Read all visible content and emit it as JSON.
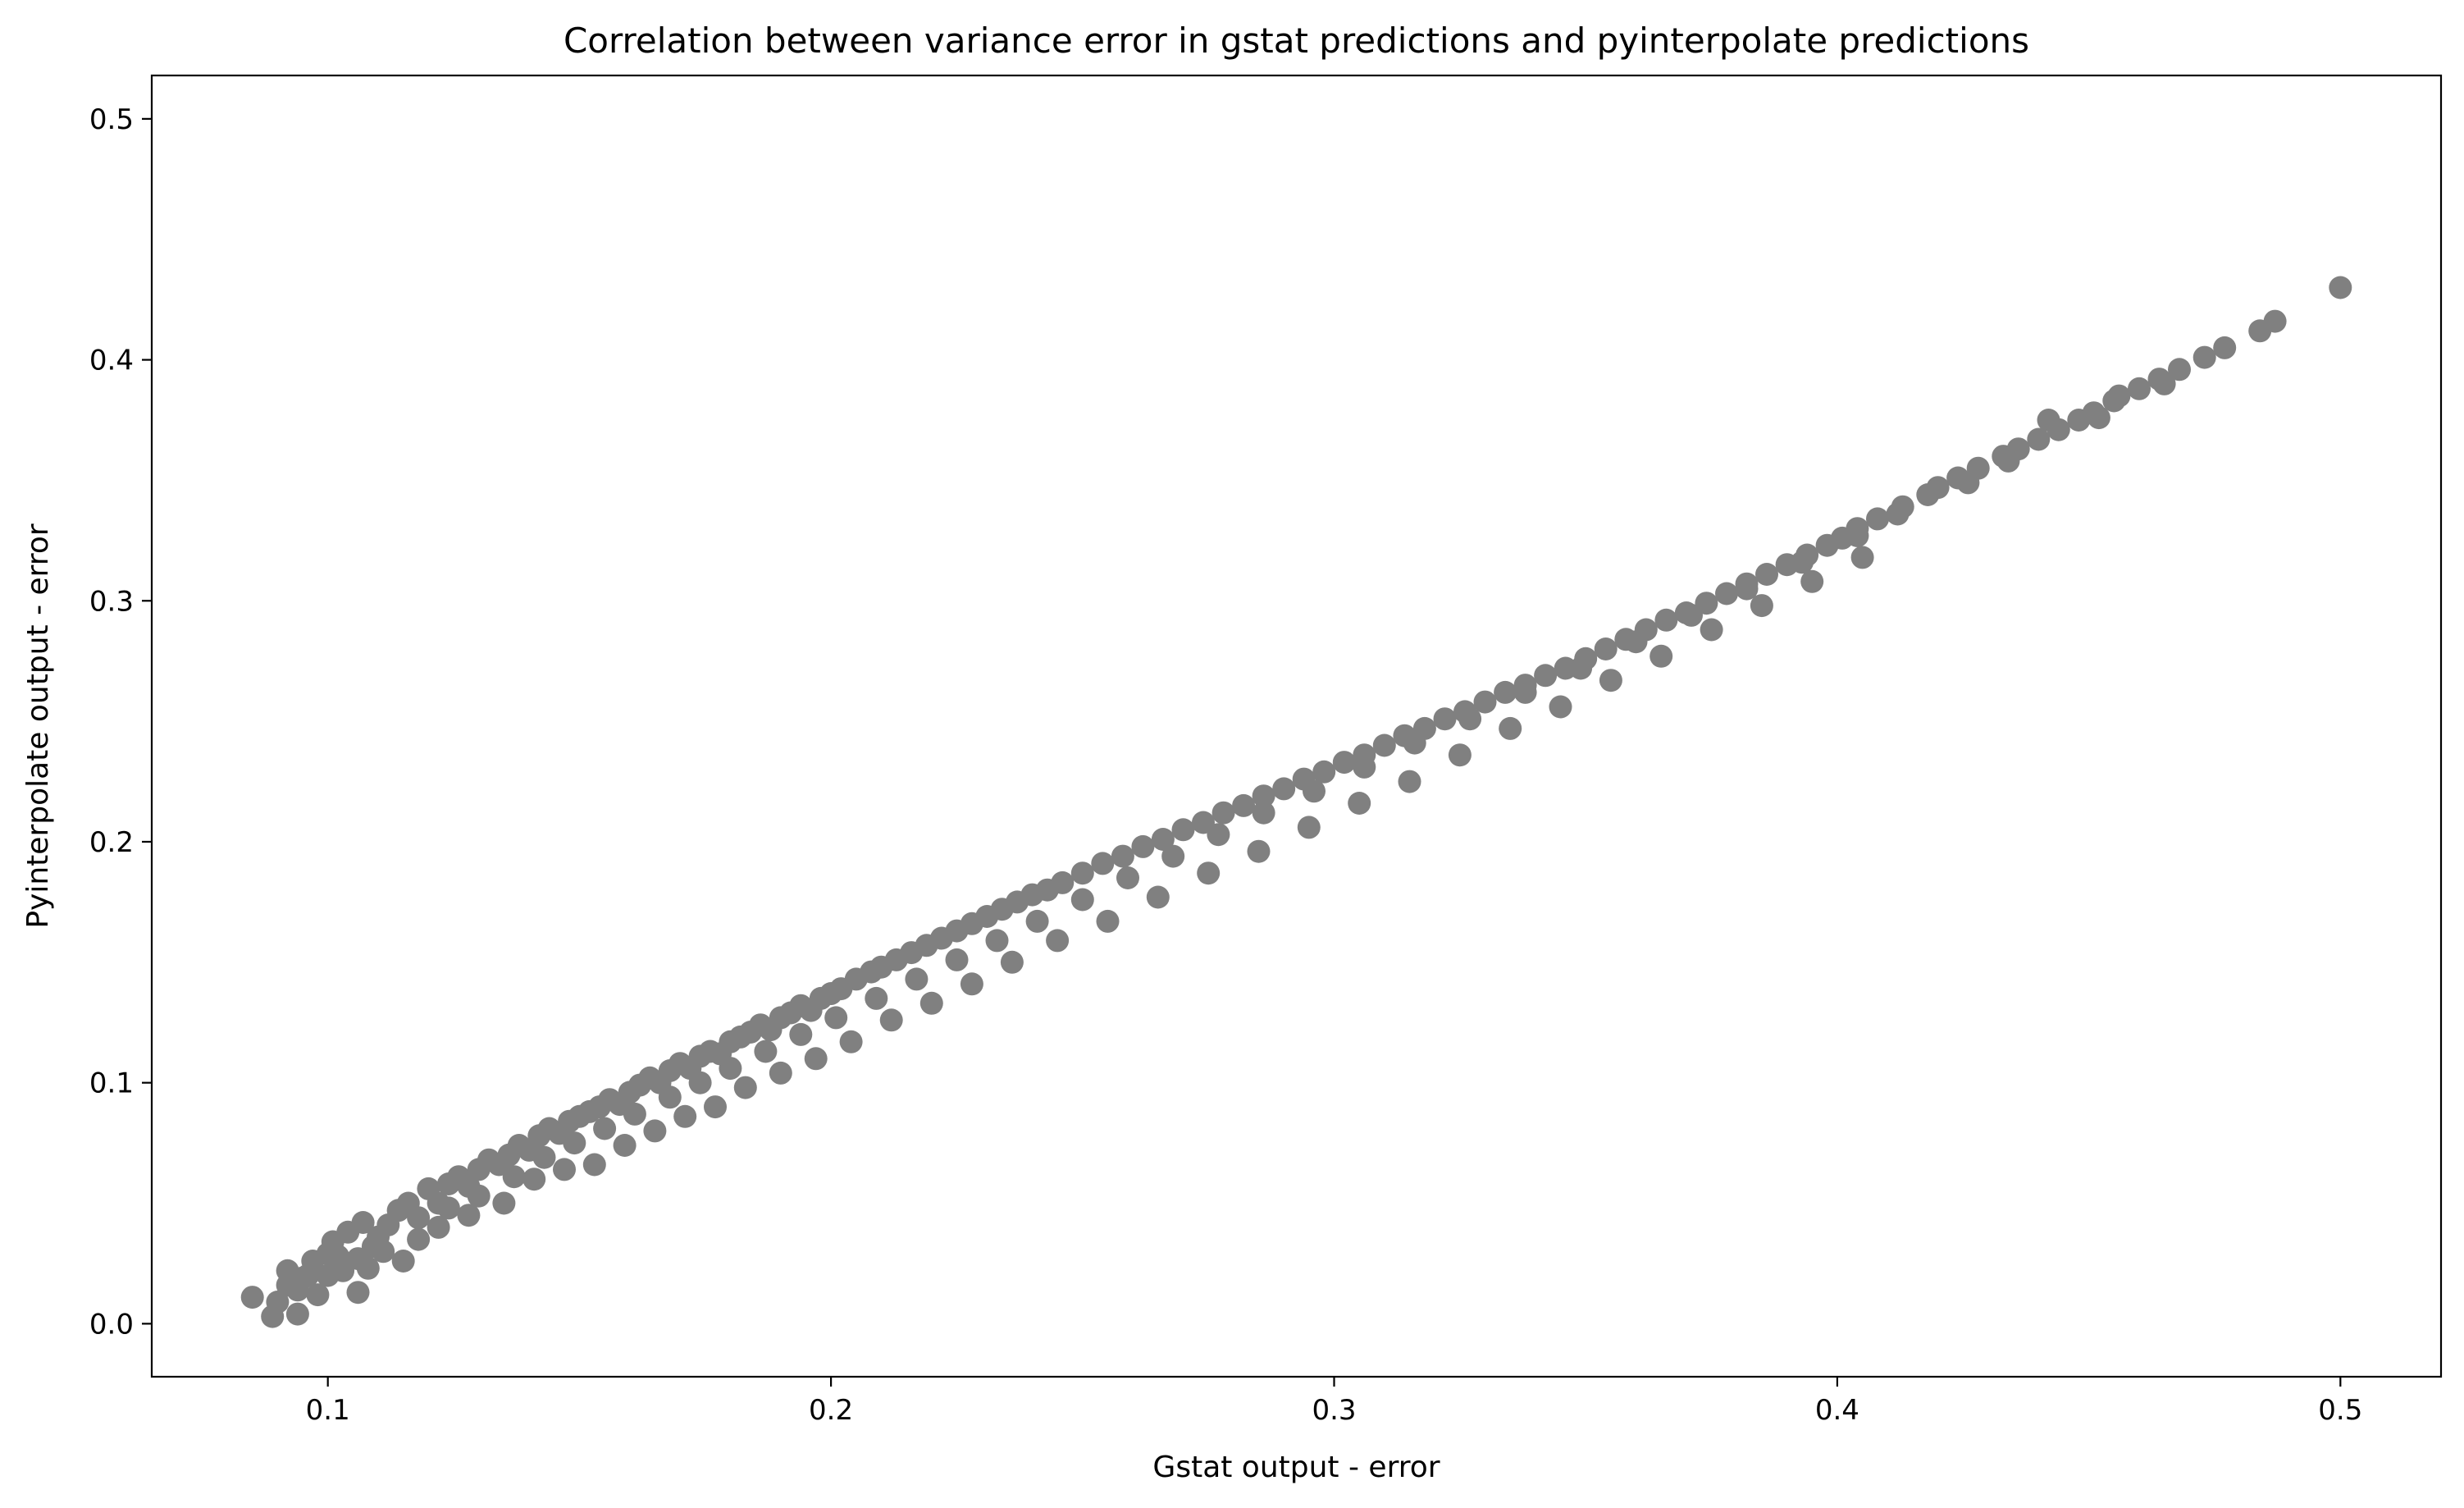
{
  "chart_data": {
    "type": "scatter",
    "title": "Correlation between variance error in gstat predictions and pyinterpolate predictions",
    "xlabel": "Gstat output - error",
    "ylabel": "Pyinterpolate output - error",
    "xlim": [
      0.065,
      0.52
    ],
    "ylim": [
      -0.022,
      0.518
    ],
    "xticks": [
      0.1,
      0.2,
      0.3,
      0.4,
      0.5
    ],
    "xtick_labels": [
      "0.1",
      "0.2",
      "0.3",
      "0.4",
      "0.5"
    ],
    "yticks": [
      0.0,
      0.1,
      0.2,
      0.3,
      0.4,
      0.5
    ],
    "ytick_labels": [
      "0.0",
      "0.1",
      "0.2",
      "0.3",
      "0.4",
      "0.5"
    ],
    "grid": false,
    "legend": "none",
    "marker_color": "#808080",
    "series": [
      {
        "x": [
          0.085,
          0.089,
          0.09,
          0.092,
          0.094,
          0.095,
          0.097,
          0.098,
          0.1,
          0.101,
          0.103,
          0.104,
          0.106,
          0.107,
          0.109,
          0.11,
          0.112,
          0.114,
          0.116,
          0.118,
          0.12,
          0.122,
          0.124,
          0.126,
          0.128,
          0.13,
          0.132,
          0.134,
          0.136,
          0.138,
          0.14,
          0.142,
          0.144,
          0.146,
          0.148,
          0.15,
          0.152,
          0.154,
          0.156,
          0.158,
          0.16,
          0.162,
          0.164,
          0.166,
          0.168,
          0.17,
          0.172,
          0.174,
          0.176,
          0.178,
          0.18,
          0.182,
          0.184,
          0.186,
          0.188,
          0.19,
          0.192,
          0.194,
          0.196,
          0.198,
          0.2,
          0.202,
          0.205,
          0.208,
          0.21,
          0.213,
          0.216,
          0.219,
          0.222,
          0.225,
          0.228,
          0.231,
          0.234,
          0.237,
          0.24,
          0.243,
          0.246,
          0.25,
          0.254,
          0.258,
          0.262,
          0.266,
          0.27,
          0.274,
          0.278,
          0.282,
          0.286,
          0.29,
          0.294,
          0.298,
          0.302,
          0.306,
          0.31,
          0.314,
          0.318,
          0.322,
          0.326,
          0.33,
          0.334,
          0.338,
          0.342,
          0.346,
          0.35,
          0.354,
          0.358,
          0.362,
          0.366,
          0.37,
          0.374,
          0.378,
          0.382,
          0.386,
          0.39,
          0.394,
          0.398,
          0.401,
          0.404,
          0.408,
          0.413,
          0.418,
          0.42,
          0.424,
          0.428,
          0.433,
          0.436,
          0.44,
          0.444,
          0.448,
          0.451,
          0.455,
          0.46,
          0.464,
          0.468,
          0.473,
          0.477,
          0.484,
          0.487,
          0.5,
          0.092,
          0.096,
          0.102,
          0.106,
          0.111,
          0.118,
          0.124,
          0.13,
          0.137,
          0.143,
          0.149,
          0.155,
          0.161,
          0.168,
          0.174,
          0.18,
          0.187,
          0.194,
          0.201,
          0.209,
          0.217,
          0.225,
          0.233,
          0.241,
          0.25,
          0.259,
          0.268,
          0.277,
          0.286,
          0.296,
          0.306,
          0.316,
          0.327,
          0.338,
          0.349,
          0.36,
          0.371,
          0.382,
          0.393,
          0.404,
          0.412,
          0.426,
          0.434,
          0.452,
          0.465,
          0.094,
          0.1,
          0.108,
          0.115,
          0.122,
          0.128,
          0.135,
          0.141,
          0.147,
          0.153,
          0.159,
          0.165,
          0.171,
          0.177,
          0.183,
          0.19,
          0.197,
          0.204,
          0.212,
          0.22,
          0.228,
          0.236,
          0.245,
          0.255,
          0.265,
          0.275,
          0.285,
          0.295,
          0.305,
          0.315,
          0.325,
          0.335,
          0.345,
          0.355,
          0.365,
          0.375,
          0.385,
          0.395,
          0.405,
          0.442,
          0.456
        ],
        "y": [
          0.011,
          0.003,
          0.009,
          0.022,
          0.004,
          0.019,
          0.026,
          0.012,
          0.029,
          0.034,
          0.022,
          0.038,
          0.013,
          0.042,
          0.032,
          0.036,
          0.041,
          0.047,
          0.05,
          0.044,
          0.056,
          0.05,
          0.058,
          0.061,
          0.057,
          0.064,
          0.068,
          0.066,
          0.07,
          0.074,
          0.072,
          0.078,
          0.081,
          0.079,
          0.084,
          0.086,
          0.088,
          0.09,
          0.093,
          0.091,
          0.096,
          0.099,
          0.102,
          0.1,
          0.105,
          0.108,
          0.106,
          0.111,
          0.113,
          0.112,
          0.117,
          0.119,
          0.121,
          0.124,
          0.122,
          0.127,
          0.129,
          0.132,
          0.13,
          0.135,
          0.137,
          0.139,
          0.143,
          0.146,
          0.148,
          0.151,
          0.154,
          0.157,
          0.16,
          0.163,
          0.166,
          0.169,
          0.172,
          0.175,
          0.178,
          0.18,
          0.183,
          0.187,
          0.191,
          0.194,
          0.198,
          0.201,
          0.205,
          0.208,
          0.212,
          0.215,
          0.219,
          0.222,
          0.226,
          0.229,
          0.233,
          0.236,
          0.24,
          0.244,
          0.247,
          0.251,
          0.254,
          0.258,
          0.262,
          0.265,
          0.269,
          0.272,
          0.276,
          0.28,
          0.284,
          0.288,
          0.292,
          0.295,
          0.299,
          0.303,
          0.307,
          0.311,
          0.315,
          0.319,
          0.323,
          0.326,
          0.33,
          0.334,
          0.339,
          0.344,
          0.347,
          0.351,
          0.355,
          0.36,
          0.363,
          0.367,
          0.371,
          0.375,
          0.378,
          0.383,
          0.388,
          0.392,
          0.396,
          0.401,
          0.405,
          0.412,
          0.416,
          0.43,
          0.016,
          0.02,
          0.028,
          0.027,
          0.03,
          0.035,
          0.048,
          0.053,
          0.061,
          0.069,
          0.075,
          0.081,
          0.087,
          0.094,
          0.1,
          0.106,
          0.113,
          0.12,
          0.127,
          0.135,
          0.143,
          0.151,
          0.159,
          0.167,
          0.176,
          0.185,
          0.194,
          0.203,
          0.212,
          0.221,
          0.231,
          0.241,
          0.251,
          0.262,
          0.272,
          0.283,
          0.294,
          0.305,
          0.316,
          0.327,
          0.336,
          0.349,
          0.358,
          0.376,
          0.39,
          0.014,
          0.02,
          0.023,
          0.026,
          0.04,
          0.045,
          0.05,
          0.06,
          0.064,
          0.066,
          0.074,
          0.08,
          0.086,
          0.09,
          0.098,
          0.104,
          0.11,
          0.117,
          0.126,
          0.133,
          0.141,
          0.15,
          0.159,
          0.167,
          0.177,
          0.187,
          0.196,
          0.206,
          0.216,
          0.225,
          0.236,
          0.247,
          0.256,
          0.267,
          0.277,
          0.288,
          0.298,
          0.308,
          0.318,
          0.375,
          0.385
        ]
      }
    ]
  }
}
